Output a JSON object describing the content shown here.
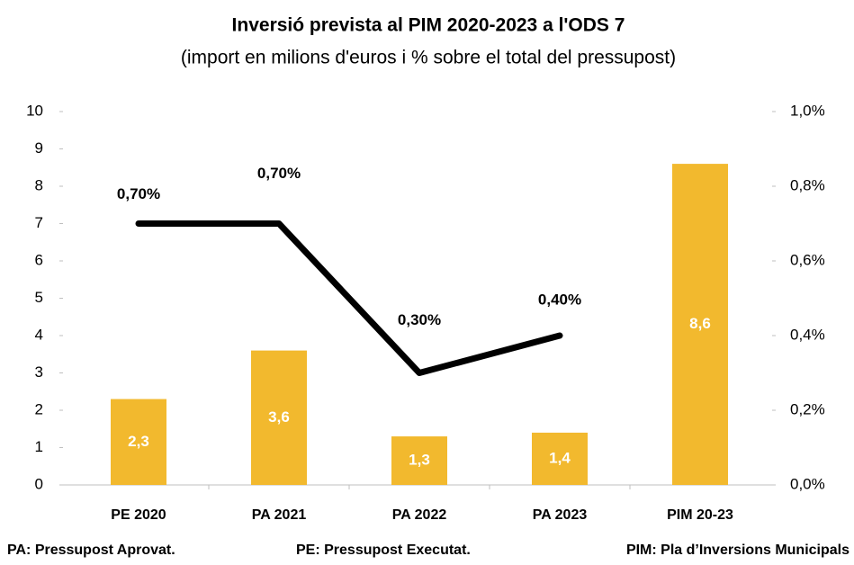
{
  "chart_data": {
    "type": "bar",
    "title": "Inversió prevista al PIM 2020-2023 a l'ODS 7",
    "subtitle": "(import en milions d'euros i % sobre el total del pressupost)",
    "categories": [
      "PE 2020",
      "PA 2021",
      "PA 2022",
      "PA 2023",
      "PIM 20-23"
    ],
    "series": [
      {
        "type": "bar",
        "color": "#f2b92e",
        "values": [
          2.3,
          3.6,
          1.3,
          1.4,
          8.6
        ],
        "value_labels": [
          "2,3",
          "3,6",
          "1,3",
          "1,4",
          "8,6"
        ]
      },
      {
        "type": "line",
        "axis": "y2",
        "color": "#000000",
        "values": [
          0.7,
          0.7,
          0.3,
          0.4,
          null
        ],
        "value_labels": [
          "0,70%",
          "0,70%",
          "0,30%",
          "0,40%",
          null
        ]
      }
    ],
    "ylim": [
      0,
      10
    ],
    "yticks": [
      0,
      1,
      2,
      3,
      4,
      5,
      6,
      7,
      8,
      9,
      10
    ],
    "y2lim": [
      0,
      1
    ],
    "y2ticks": [
      {
        "value": 0,
        "label": "0,0%"
      },
      {
        "value": 0.2,
        "label": "0,2%"
      },
      {
        "value": 0.4,
        "label": "0,4%"
      },
      {
        "value": 0.6,
        "label": "0,6%"
      },
      {
        "value": 0.8,
        "label": "0,8%"
      },
      {
        "value": 1,
        "label": "1,0%"
      }
    ],
    "footnotes": [
      "PA: Pressupost Aprovat.",
      "PE: Pressupost Executat.",
      "PIM: Pla d’Inversions Municipals"
    ]
  }
}
